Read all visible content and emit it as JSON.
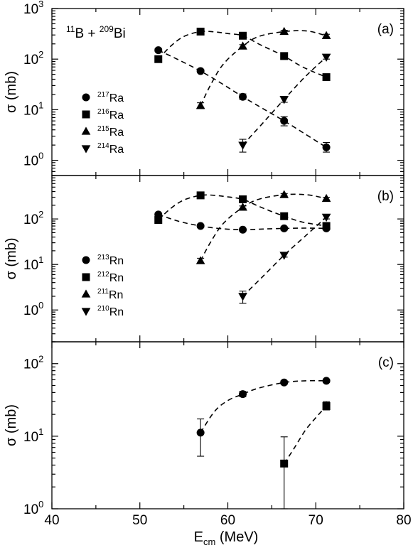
{
  "figure": {
    "x_axis_label_main": "E",
    "x_axis_label_sub": "cm",
    "x_axis_label_unit": " (MeV)",
    "x_ticks": [
      "40",
      "50",
      "60",
      "70",
      "80"
    ]
  },
  "chart_data": [
    {
      "type": "scatter",
      "panel": "(a)",
      "annotation": {
        "proj_mass": "11",
        "proj_sym": "B + ",
        "targ_mass": "209",
        "targ_sym": "Bi"
      },
      "ylabel": "σ (mb)",
      "yscale": "log",
      "ylim": [
        0.5,
        1000
      ],
      "xlim": [
        40,
        80
      ],
      "y_ticks": [
        {
          "value": 1,
          "base": "10",
          "exp": "0"
        },
        {
          "value": 10,
          "base": "10",
          "exp": "1"
        },
        {
          "value": 100,
          "base": "10",
          "exp": "2"
        },
        {
          "value": 1000,
          "base": "10",
          "exp": "3"
        }
      ],
      "legend_position": "left",
      "series": [
        {
          "name": "Ra",
          "mass": "217",
          "marker": "circle",
          "x": [
            52.1,
            56.9,
            61.7,
            66.4,
            71.2
          ],
          "y": [
            150,
            58,
            18,
            6,
            1.8
          ],
          "err_low": [
            140,
            54,
            16,
            4.8,
            1.45
          ],
          "err_high": [
            162,
            63,
            20.5,
            7.3,
            2.25
          ],
          "curve": [
            [
              52.1,
              150
            ],
            [
              54.5,
              95
            ],
            [
              56.9,
              58
            ],
            [
              59.3,
              33
            ],
            [
              61.7,
              18
            ],
            [
              64,
              10.5
            ],
            [
              66.4,
              6
            ],
            [
              68.8,
              3.3
            ],
            [
              71.2,
              1.8
            ]
          ]
        },
        {
          "name": "Ra",
          "mass": "216",
          "marker": "square",
          "x": [
            52.1,
            56.9,
            61.7,
            66.4,
            71.2
          ],
          "y": [
            100,
            350,
            290,
            115,
            44
          ],
          "err_low": [
            93,
            330,
            272,
            106,
            40
          ],
          "err_high": [
            108,
            372,
            310,
            125,
            48
          ],
          "curve": [
            [
              52.1,
              100
            ],
            [
              53.5,
              180
            ],
            [
              55,
              280
            ],
            [
              56.9,
              350
            ],
            [
              58.5,
              345
            ],
            [
              60,
              320
            ],
            [
              61.7,
              290
            ],
            [
              63.5,
              200
            ],
            [
              65,
              150
            ],
            [
              66.4,
              115
            ],
            [
              68.5,
              70
            ],
            [
              71.2,
              44
            ]
          ]
        },
        {
          "name": "Ra",
          "mass": "215",
          "marker": "triangle-up",
          "x": [
            56.9,
            61.7,
            66.4,
            71.2
          ],
          "y": [
            12,
            180,
            350,
            290
          ],
          "err_low": [
            10.5,
            168,
            330,
            272
          ],
          "err_high": [
            13.7,
            193,
            372,
            310
          ],
          "curve": [
            [
              56.9,
              12
            ],
            [
              58,
              30
            ],
            [
              59.5,
              80
            ],
            [
              61.7,
              180
            ],
            [
              63.5,
              280
            ],
            [
              66.4,
              350
            ],
            [
              69,
              360
            ],
            [
              71.2,
              290
            ]
          ]
        },
        {
          "name": "Ra",
          "mass": "214",
          "marker": "triangle-down",
          "x": [
            61.7,
            66.4,
            71.2
          ],
          "y": [
            2.0,
            16,
            110
          ],
          "err_low": [
            1.45,
            14,
            100
          ],
          "err_high": [
            2.6,
            18.2,
            121
          ],
          "curve": [
            [
              61.7,
              2.0
            ],
            [
              64,
              5.5
            ],
            [
              66.4,
              16
            ],
            [
              68.8,
              45
            ],
            [
              71.2,
              110
            ]
          ]
        }
      ]
    },
    {
      "type": "scatter",
      "panel": "(b)",
      "ylabel": "σ (mb)",
      "yscale": "log",
      "ylim": [
        0.2,
        900
      ],
      "xlim": [
        40,
        80
      ],
      "y_ticks": [
        {
          "value": 1,
          "base": "10",
          "exp": "0"
        },
        {
          "value": 10,
          "base": "10",
          "exp": "1"
        },
        {
          "value": 100,
          "base": "10",
          "exp": "2"
        }
      ],
      "legend_position": "left",
      "series": [
        {
          "name": "Rn",
          "mass": "213",
          "marker": "circle",
          "x": [
            52.1,
            56.9,
            61.7,
            66.4,
            71.2
          ],
          "y": [
            125,
            70,
            58,
            62,
            62
          ],
          "err_low": [
            116,
            65,
            54,
            57,
            57
          ],
          "err_high": [
            135,
            75,
            62,
            67,
            67
          ],
          "curve": [
            [
              52.1,
              125
            ],
            [
              54.5,
              88
            ],
            [
              56.9,
              70
            ],
            [
              59.3,
              61
            ],
            [
              61.7,
              58
            ],
            [
              64,
              60
            ],
            [
              66.4,
              62
            ],
            [
              68.8,
              63
            ],
            [
              71.2,
              62
            ]
          ]
        },
        {
          "name": "Rn",
          "mass": "212",
          "marker": "square",
          "x": [
            52.1,
            56.9,
            61.7,
            66.4,
            71.2
          ],
          "y": [
            95,
            330,
            270,
            115,
            70
          ],
          "err_low": [
            84,
            310,
            252,
            106,
            64
          ],
          "err_high": [
            107,
            352,
            290,
            125,
            77
          ],
          "curve": [
            [
              52.1,
              95
            ],
            [
              53.5,
              170
            ],
            [
              55,
              260
            ],
            [
              56.9,
              330
            ],
            [
              58.5,
              330
            ],
            [
              60,
              305
            ],
            [
              61.7,
              270
            ],
            [
              63.5,
              190
            ],
            [
              65,
              145
            ],
            [
              66.4,
              115
            ],
            [
              68.5,
              85
            ],
            [
              71.2,
              70
            ]
          ]
        },
        {
          "name": "Rn",
          "mass": "211",
          "marker": "triangle-up",
          "x": [
            56.9,
            61.7,
            66.4,
            71.2
          ],
          "y": [
            12,
            180,
            340,
            280
          ],
          "err_low": [
            10.5,
            168,
            320,
            262
          ],
          "err_high": [
            13.7,
            193,
            362,
            300
          ],
          "curve": [
            [
              56.9,
              12
            ],
            [
              58,
              30
            ],
            [
              59.5,
              80
            ],
            [
              61.7,
              180
            ],
            [
              63.5,
              270
            ],
            [
              66.4,
              340
            ],
            [
              69,
              340
            ],
            [
              71.2,
              280
            ]
          ]
        },
        {
          "name": "Rn",
          "mass": "210",
          "marker": "triangle-down",
          "x": [
            61.7,
            66.4,
            71.2
          ],
          "y": [
            2.0,
            16,
            110
          ],
          "err_low": [
            1.4,
            14.5,
            100
          ],
          "err_high": [
            2.6,
            17.5,
            121
          ],
          "curve": [
            [
              61.7,
              2.0
            ],
            [
              64,
              5.5
            ],
            [
              66.4,
              16
            ],
            [
              68.8,
              42
            ],
            [
              71.2,
              110
            ]
          ]
        }
      ]
    },
    {
      "type": "scatter",
      "panel": "(c)",
      "ylabel": "σ (mb)",
      "yscale": "log",
      "ylim": [
        1,
        200
      ],
      "xlim": [
        40,
        80
      ],
      "y_ticks": [
        {
          "value": 1,
          "base": "10",
          "exp": "0"
        },
        {
          "value": 10,
          "base": "10",
          "exp": "1"
        },
        {
          "value": 100,
          "base": "10",
          "exp": "2"
        }
      ],
      "legend_position": "none",
      "series": [
        {
          "marker": "circle",
          "x": [
            56.9,
            61.7,
            66.4,
            71.2
          ],
          "y": [
            11.2,
            38,
            55,
            58
          ],
          "err_low": [
            5.3,
            35,
            52,
            55
          ],
          "err_high": [
            17.3,
            41.5,
            58,
            61
          ],
          "curve": [
            [
              56.9,
              11.2
            ],
            [
              58.5,
              22
            ],
            [
              60,
              31
            ],
            [
              61.7,
              38
            ],
            [
              63.5,
              46
            ],
            [
              66.4,
              55
            ],
            [
              68.8,
              58
            ],
            [
              71.2,
              58
            ]
          ]
        },
        {
          "marker": "square",
          "x": [
            66.4,
            71.2
          ],
          "y": [
            4.2,
            26
          ],
          "err_low": [
            1.0,
            23
          ],
          "err_high": [
            9.8,
            30
          ],
          "curve": [
            [
              66.4,
              4.2
            ],
            [
              67.6,
              7
            ],
            [
              68.8,
              12
            ],
            [
              70,
              18
            ],
            [
              71.2,
              26
            ]
          ]
        }
      ]
    }
  ]
}
